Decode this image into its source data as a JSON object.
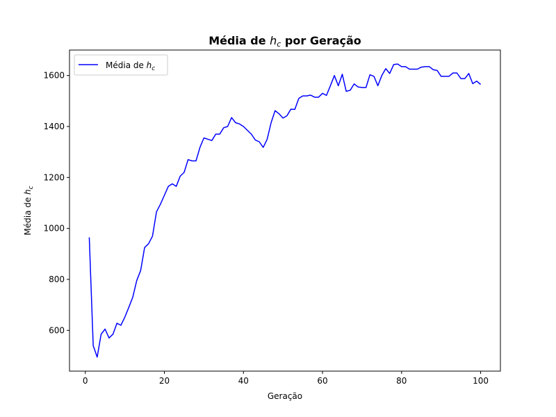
{
  "chart_data": {
    "type": "line",
    "title_prefix": "Média de ",
    "title_var": "h",
    "title_sub": "c",
    "title_suffix": " por Geração",
    "xlabel": "Geração",
    "ylabel_prefix": "Média de ",
    "ylabel_var": "h",
    "ylabel_sub": "c",
    "xlim": [
      -4,
      105
    ],
    "ylim": [
      440,
      1700
    ],
    "x_ticks": [
      0,
      20,
      40,
      60,
      80,
      100
    ],
    "y_ticks": [
      600,
      800,
      1000,
      1200,
      1400,
      1600
    ],
    "grid": false,
    "legend_position": "upper left",
    "series": [
      {
        "legend_prefix": "Média de ",
        "legend_var": "h",
        "legend_sub": "c",
        "color": "#0000ff",
        "x": [
          1,
          2,
          3,
          4,
          5,
          6,
          7,
          8,
          9,
          10,
          11,
          12,
          13,
          14,
          15,
          16,
          17,
          18,
          19,
          20,
          21,
          22,
          23,
          24,
          25,
          26,
          27,
          28,
          29,
          30,
          31,
          32,
          33,
          34,
          35,
          36,
          37,
          38,
          39,
          40,
          41,
          42,
          43,
          44,
          45,
          46,
          47,
          48,
          49,
          50,
          51,
          52,
          53,
          54,
          55,
          56,
          57,
          58,
          59,
          60,
          61,
          62,
          63,
          64,
          65,
          66,
          67,
          68,
          69,
          70,
          71,
          72,
          73,
          74,
          75,
          76,
          77,
          78,
          79,
          80,
          81,
          82,
          83,
          84,
          85,
          86,
          87,
          88,
          89,
          90,
          91,
          92,
          93,
          94,
          95,
          96,
          97,
          98,
          99,
          100
        ],
        "values": [
          965,
          540,
          495,
          585,
          605,
          570,
          585,
          628,
          620,
          652,
          690,
          730,
          795,
          835,
          925,
          940,
          970,
          1065,
          1095,
          1130,
          1165,
          1175,
          1165,
          1205,
          1220,
          1270,
          1265,
          1265,
          1318,
          1355,
          1350,
          1345,
          1370,
          1370,
          1395,
          1400,
          1435,
          1415,
          1410,
          1400,
          1385,
          1370,
          1347,
          1340,
          1318,
          1350,
          1415,
          1462,
          1450,
          1433,
          1442,
          1468,
          1467,
          1510,
          1520,
          1520,
          1523,
          1515,
          1515,
          1530,
          1522,
          1560,
          1600,
          1560,
          1605,
          1538,
          1542,
          1567,
          1555,
          1553,
          1553,
          1603,
          1597,
          1560,
          1600,
          1627,
          1608,
          1643,
          1645,
          1635,
          1635,
          1625,
          1625,
          1625,
          1633,
          1635,
          1635,
          1623,
          1620,
          1597,
          1597,
          1597,
          1610,
          1610,
          1588,
          1588,
          1608,
          1568,
          1578,
          1565
        ]
      }
    ]
  }
}
